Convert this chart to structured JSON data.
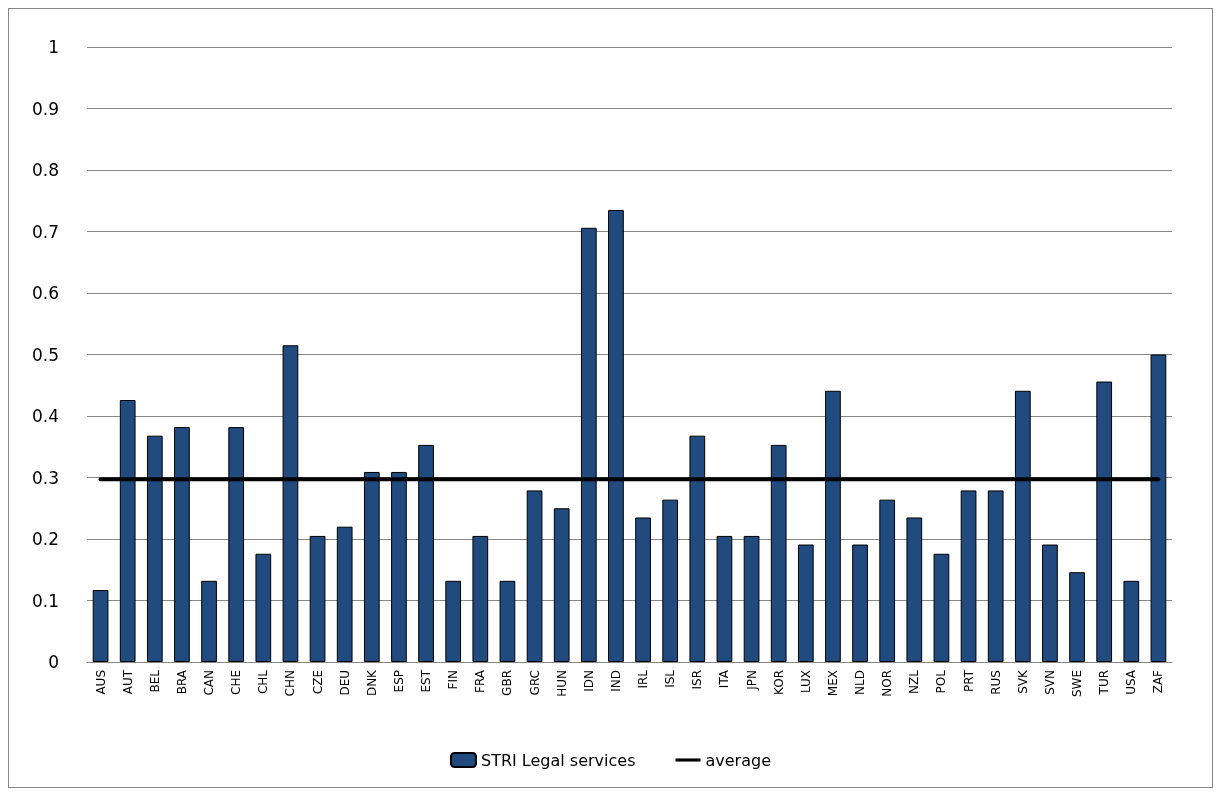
{
  "chart_data": {
    "type": "bar",
    "categories": [
      "AUS",
      "AUT",
      "BEL",
      "BRA",
      "CAN",
      "CHE",
      "CHL",
      "CHN",
      "CZE",
      "DEU",
      "DNK",
      "ESP",
      "EST",
      "FIN",
      "FRA",
      "GBR",
      "GRC",
      "HUN",
      "IDN",
      "IND",
      "IRL",
      "ISL",
      "ISR",
      "ITA",
      "JPN",
      "KOR",
      "LUX",
      "MEX",
      "NLD",
      "NOR",
      "NZL",
      "POL",
      "PRT",
      "RUS",
      "SVK",
      "SVN",
      "SWE",
      "TUR",
      "USA",
      "ZAF"
    ],
    "series": [
      {
        "name": "STRI Legal services",
        "color": "#214a7e",
        "values": [
          0.117,
          0.426,
          0.368,
          0.382,
          0.132,
          0.382,
          0.176,
          0.515,
          0.205,
          0.22,
          0.309,
          0.309,
          0.353,
          0.132,
          0.205,
          0.132,
          0.279,
          0.25,
          0.706,
          0.735,
          0.235,
          0.264,
          0.368,
          0.205,
          0.205,
          0.353,
          0.191,
          0.441,
          0.191,
          0.264,
          0.235,
          0.176,
          0.279,
          0.279,
          0.441,
          0.191,
          0.146,
          0.456,
          0.132,
          0.5
        ]
      },
      {
        "name": "average",
        "type": "line",
        "color": "#000000",
        "values": [
          0.297,
          0.297,
          0.297,
          0.297,
          0.297,
          0.297,
          0.297,
          0.297,
          0.297,
          0.297,
          0.297,
          0.297,
          0.297,
          0.297,
          0.297,
          0.297,
          0.297,
          0.297,
          0.297,
          0.297,
          0.297,
          0.297,
          0.297,
          0.297,
          0.297,
          0.297,
          0.297,
          0.297,
          0.297,
          0.297,
          0.297,
          0.297,
          0.297,
          0.297,
          0.297,
          0.297,
          0.297,
          0.297,
          0.297,
          0.297
        ]
      }
    ],
    "ylim": [
      0,
      1
    ],
    "yticks": [
      0,
      0.1,
      0.2,
      0.3,
      0.4,
      0.5,
      0.6,
      0.7,
      0.8,
      0.9,
      1
    ],
    "grid": "y",
    "legend": "bottom",
    "marker": "none",
    "line_style": "solid"
  }
}
